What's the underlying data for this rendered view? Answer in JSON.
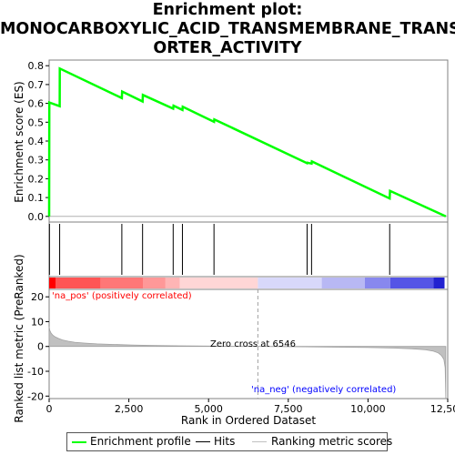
{
  "title_lines": [
    "Enrichment plot:",
    "MONOCARBOXYLIC_ACID_TRANSMEMBRANE_TRANSP",
    "ORTER_ACTIVITY"
  ],
  "legend": {
    "items": [
      {
        "label": "Enrichment profile",
        "color": "#00ff00"
      },
      {
        "label": "Hits",
        "color": "#000000"
      },
      {
        "label": "Ranking metric scores",
        "color": "#c0c0c0"
      }
    ]
  },
  "chart_data": [
    {
      "type": "line",
      "title": "",
      "xlabel": "",
      "ylabel": "Enrichment score (ES)",
      "xlim": [
        0,
        12500
      ],
      "ylim": [
        -0.03,
        0.83
      ],
      "yticks": [
        0.0,
        0.1,
        0.2,
        0.3,
        0.4,
        0.5,
        0.6,
        0.7,
        0.8
      ],
      "yticklabels": [
        "0.0",
        "0.1",
        "0.2",
        "0.3",
        "0.4",
        "0.5",
        "0.6",
        "0.7",
        "0.8"
      ],
      "grid": false,
      "series": [
        {
          "name": "Enrichment profile",
          "color": "#00ff00",
          "x": [
            0,
            5,
            330,
            335,
            2280,
            2290,
            2930,
            2940,
            3890,
            3900,
            4180,
            4190,
            5170,
            5180,
            8090,
            8100,
            8230,
            8240,
            10680,
            10690,
            12440
          ],
          "y": [
            0.0,
            0.605,
            0.585,
            0.785,
            0.628,
            0.663,
            0.61,
            0.645,
            0.572,
            0.588,
            0.565,
            0.582,
            0.502,
            0.515,
            0.282,
            0.285,
            0.28,
            0.292,
            0.095,
            0.135,
            0.0
          ]
        }
      ]
    },
    {
      "type": "bar",
      "title": "",
      "xlabel": "",
      "ylabel": "",
      "xlim": [
        0,
        12500
      ],
      "hits_x": [
        10,
        330,
        2280,
        2930,
        3890,
        4180,
        5170,
        8090,
        8230,
        10680
      ],
      "hits_color": "#000000",
      "color_blocks": [
        {
          "x0": 0,
          "x1": 200,
          "color": "#ff0000"
        },
        {
          "x0": 200,
          "x1": 1620,
          "color": "#ff5555"
        },
        {
          "x0": 1620,
          "x1": 2950,
          "color": "#ff7777"
        },
        {
          "x0": 2950,
          "x1": 3650,
          "color": "#ff9898"
        },
        {
          "x0": 3650,
          "x1": 4100,
          "color": "#ffb5b5"
        },
        {
          "x0": 4100,
          "x1": 6546,
          "color": "#ffd6d6"
        },
        {
          "x0": 6546,
          "x1": 8550,
          "color": "#d8d8fa"
        },
        {
          "x0": 8550,
          "x1": 9900,
          "color": "#b8b8f4"
        },
        {
          "x0": 9900,
          "x1": 10700,
          "color": "#8888ee"
        },
        {
          "x0": 10700,
          "x1": 12050,
          "color": "#5555e6"
        },
        {
          "x0": 12050,
          "x1": 12400,
          "color": "#2222d0"
        }
      ]
    },
    {
      "type": "area",
      "title": "",
      "xlabel": "Rank in Ordered Dataset",
      "ylabel": "Ranked list metric (PreRanked)",
      "xlim": [
        0,
        12500
      ],
      "ylim": [
        -21,
        23
      ],
      "xticks": [
        0,
        2500,
        5000,
        7500,
        10000,
        12500
      ],
      "xticklabels": [
        "0",
        "2,500",
        "5,000",
        "7,500",
        "10,000",
        "12,500"
      ],
      "yticks": [
        -20,
        -10,
        0,
        10,
        20
      ],
      "yticklabels": [
        "-20",
        "-10",
        "0",
        "10",
        "20"
      ],
      "grid": false,
      "color": "#c0c0c0",
      "x": [
        0,
        20,
        60,
        120,
        200,
        300,
        420,
        600,
        800,
        1100,
        1500,
        2000,
        2600,
        3300,
        4100,
        5000,
        6000,
        6546,
        7200,
        8000,
        9000,
        10000,
        10800,
        11400,
        11800,
        12050,
        12200,
        12300,
        12380,
        12420,
        12440
      ],
      "y": [
        8.0,
        6.5,
        5.4,
        4.5,
        3.8,
        3.2,
        2.6,
        2.1,
        1.7,
        1.35,
        1.05,
        0.8,
        0.6,
        0.43,
        0.28,
        0.16,
        0.05,
        0.0,
        -0.07,
        -0.15,
        -0.27,
        -0.42,
        -0.65,
        -0.95,
        -1.35,
        -1.9,
        -2.6,
        -3.6,
        -5.2,
        -8.5,
        -21.0
      ],
      "annotations": {
        "pos_label": "'na_pos' (positively correlated)",
        "pos_color": "#ff0000",
        "neg_label": "'na_neg' (negatively correlated)",
        "neg_color": "#0000ff",
        "zero_cross_label": "Zero cross at 6546",
        "zero_cross_x": 6546
      }
    }
  ]
}
